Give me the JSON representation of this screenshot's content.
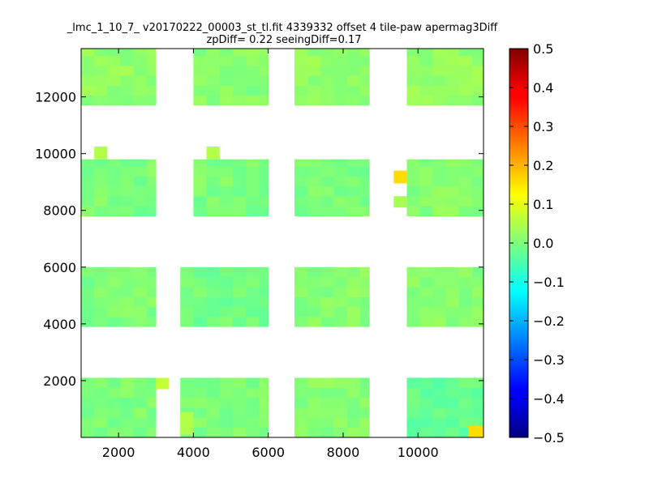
{
  "chart_data": {
    "type": "heatmap",
    "title": "_lmc_1_10_7_ v20170222_00003_st_tl.fit 4339332 offset 4 tile-paw apermag3Diff",
    "subtitle": "zpDiff= 0.22 seeingDiff=0.17",
    "xlabel": "",
    "ylabel": "",
    "xlim": [
      1000,
      11750
    ],
    "ylim": [
      0,
      13700
    ],
    "x_ticks": [
      2000,
      4000,
      6000,
      8000,
      10000
    ],
    "x_tick_labels": [
      "2000",
      "4000",
      "6000",
      "8000",
      "10000"
    ],
    "y_ticks": [
      2000,
      4000,
      6000,
      8000,
      10000,
      12000
    ],
    "y_tick_labels": [
      "2000",
      "4000",
      "6000",
      "8000",
      "10000",
      "12000"
    ],
    "colorbar": {
      "colormap": "jet",
      "range": [
        -0.5,
        0.5
      ],
      "ticks": [
        0.5,
        0.4,
        0.3,
        0.2,
        0.1,
        0.0,
        -0.1,
        -0.2,
        -0.3,
        -0.4,
        -0.5
      ],
      "tick_labels": [
        "0.5",
        "0.4",
        "0.3",
        "0.2",
        "0.1",
        "0.0",
        "−0.1",
        "−0.2",
        "−0.3",
        "−0.4",
        "−0.5"
      ]
    },
    "grid": false,
    "tile_regions": [
      {
        "x": [
          1000,
          3000
        ],
        "y": [
          0,
          2100
        ],
        "value": 0.0
      },
      {
        "x": [
          3650,
          6000
        ],
        "y": [
          0,
          2100
        ],
        "value": 0.0
      },
      {
        "x": [
          6700,
          8700
        ],
        "y": [
          0,
          2100
        ],
        "value": 0.01
      },
      {
        "x": [
          9700,
          11750
        ],
        "y": [
          0,
          2100
        ],
        "value": -0.02
      },
      {
        "x": [
          1000,
          3000
        ],
        "y": [
          3900,
          6000
        ],
        "value": 0.0
      },
      {
        "x": [
          3650,
          6000
        ],
        "y": [
          3900,
          6000
        ],
        "value": -0.01
      },
      {
        "x": [
          6700,
          8700
        ],
        "y": [
          3900,
          6000
        ],
        "value": 0.01
      },
      {
        "x": [
          9700,
          11750
        ],
        "y": [
          3900,
          6000
        ],
        "value": 0.01
      },
      {
        "x": [
          1000,
          3000
        ],
        "y": [
          7800,
          9800
        ],
        "value": 0.0
      },
      {
        "x": [
          4000,
          6000
        ],
        "y": [
          7800,
          9800
        ],
        "value": 0.0
      },
      {
        "x": [
          6700,
          8700
        ],
        "y": [
          7800,
          9800
        ],
        "value": 0.0
      },
      {
        "x": [
          9700,
          11750
        ],
        "y": [
          7800,
          9800
        ],
        "value": 0.01
      },
      {
        "x": [
          1000,
          3000
        ],
        "y": [
          11700,
          13700
        ],
        "value": 0.02
      },
      {
        "x": [
          4000,
          6000
        ],
        "y": [
          11700,
          13700
        ],
        "value": 0.01
      },
      {
        "x": [
          6700,
          8700
        ],
        "y": [
          11700,
          13700
        ],
        "value": 0.02
      },
      {
        "x": [
          9700,
          11750
        ],
        "y": [
          11700,
          13700
        ],
        "value": 0.02
      }
    ],
    "outlier_cells": [
      {
        "x": [
          3000,
          3350
        ],
        "y": [
          1700,
          2100
        ],
        "value": 0.07
      },
      {
        "x": [
          3650,
          4000
        ],
        "y": [
          100,
          900
        ],
        "value": 0.05
      },
      {
        "x": [
          11350,
          11750
        ],
        "y": [
          0,
          400
        ],
        "value": 0.16
      },
      {
        "x": [
          1350,
          1700
        ],
        "y": [
          9800,
          10250
        ],
        "value": 0.05
      },
      {
        "x": [
          4350,
          4700
        ],
        "y": [
          9800,
          10250
        ],
        "value": 0.05
      },
      {
        "x": [
          9350,
          9700
        ],
        "y": [
          8950,
          9400
        ],
        "value": 0.16
      },
      {
        "x": [
          9350,
          9700
        ],
        "y": [
          8100,
          8500
        ],
        "value": 0.04
      }
    ]
  }
}
